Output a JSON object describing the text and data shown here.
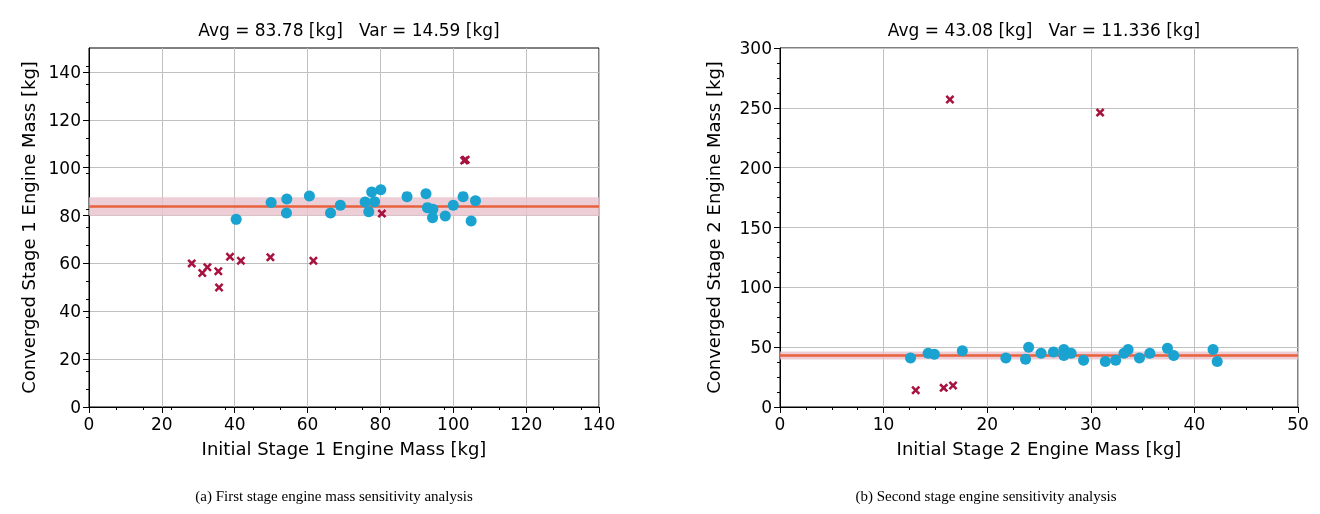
{
  "chart_data": [
    {
      "type": "scatter",
      "title": "Avg = 83.78 [kg]   Var = 14.59 [kg]",
      "xlabel": "Initial Stage 1 Engine Mass [kg]",
      "ylabel": "Converged Stage 1 Engine Mass [kg]",
      "annotations": [
        "(a) First stage engine mass sensitivity analysis"
      ],
      "xlim": [
        0,
        140
      ],
      "xticks": [
        0,
        20,
        40,
        60,
        80,
        100,
        120,
        140
      ],
      "ylim": [
        0,
        150
      ],
      "yticks": [
        0,
        20,
        40,
        60,
        80,
        100,
        120,
        140
      ],
      "grid": true,
      "ref_lines": [
        {
          "axis": "y",
          "value": 83.78,
          "color": "#e8603c"
        }
      ],
      "bands": [
        {
          "axis": "y",
          "from": 79.96,
          "to": 87.6,
          "color": "#e8c2cc"
        }
      ],
      "series": [
        {
          "color": "#1aa3d1",
          "marker": "circle",
          "x": [
            40.4,
            50.0,
            54.3,
            54.2,
            60.5,
            66.3,
            69.0,
            75.8,
            76.8,
            77.6,
            78.4,
            80.1,
            87.3,
            92.5,
            92.9,
            94.4,
            94.3,
            97.8,
            100.0,
            102.7,
            104.9,
            106.1
          ],
          "values": [
            78.4,
            85.4,
            86.9,
            81.1,
            88.2,
            81.1,
            84.3,
            85.7,
            81.6,
            89.8,
            85.8,
            90.8,
            87.9,
            89.1,
            83.3,
            82.6,
            79.1,
            79.8,
            84.3,
            87.9,
            77.7,
            86.2
          ]
        },
        {
          "color": "#a8123e",
          "marker": "cross",
          "x": [
            28.2,
            31.1,
            32.5,
            35.5,
            35.7,
            38.7,
            41.7,
            49.8,
            61.6,
            80.4,
            103.0,
            103.4
          ],
          "values": [
            60.0,
            56.0,
            58.4,
            56.7,
            49.9,
            62.8,
            61.1,
            62.6,
            61.1,
            80.8,
            103.0,
            103.3
          ]
        }
      ]
    },
    {
      "type": "scatter",
      "title": "Avg = 43.08 [kg]   Var = 11.336 [kg]",
      "xlabel": "Initial Stage 2 Engine Mass [kg]",
      "ylabel": "Converged Stage 2 Engine Mass [kg]",
      "annotations": [
        "(b) Second stage engine sensitivity analysis"
      ],
      "xlim": [
        0,
        50
      ],
      "xticks": [
        0,
        10,
        20,
        30,
        40,
        50
      ],
      "ylim": [
        0,
        300
      ],
      "yticks": [
        0,
        50,
        100,
        150,
        200,
        250,
        300
      ],
      "grid": true,
      "ref_lines": [
        {
          "axis": "y",
          "value": 43.08,
          "color": "#e8603c"
        }
      ],
      "bands": [
        {
          "axis": "y",
          "from": 39.71,
          "to": 46.45,
          "color": "#e8c2cc"
        }
      ],
      "series": [
        {
          "color": "#1aa3d1",
          "marker": "circle",
          "x": [
            12.6,
            14.3,
            14.9,
            17.6,
            21.8,
            23.7,
            24.0,
            25.2,
            26.4,
            27.4,
            27.4,
            28.1,
            29.3,
            31.4,
            32.4,
            33.2,
            33.6,
            34.7,
            35.7,
            37.4,
            38.0,
            41.8,
            42.2
          ],
          "values": [
            41,
            45,
            44,
            47,
            41,
            40,
            50,
            45,
            46,
            48,
            43,
            45,
            39,
            38,
            39,
            45,
            48,
            41,
            45,
            49,
            43,
            48,
            38
          ]
        },
        {
          "color": "#a8123e",
          "marker": "cross",
          "x": [
            13.1,
            15.8,
            16.7,
            16.4,
            30.9
          ],
          "values": [
            14,
            16,
            18,
            257,
            246
          ]
        }
      ]
    }
  ]
}
